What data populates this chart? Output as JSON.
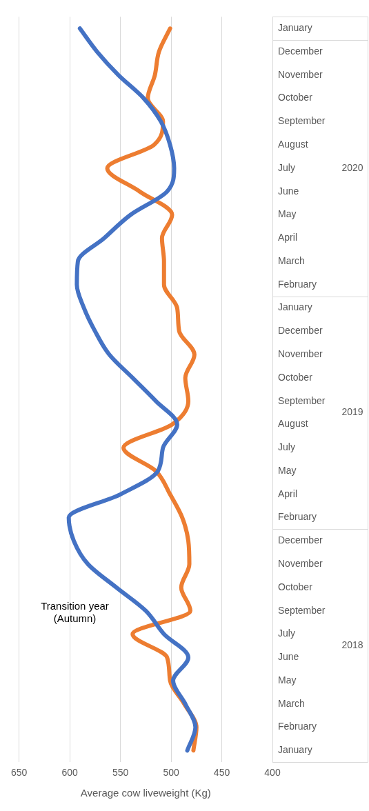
{
  "chart_data": {
    "type": "line",
    "orientation": "horizontal",
    "xlabel": "Average cow liveweight (Kg)",
    "categories": [
      "January",
      "December",
      "November",
      "October",
      "September",
      "August",
      "July",
      "June",
      "May",
      "April",
      "March",
      "February",
      "January",
      "December",
      "November",
      "October",
      "September",
      "August",
      "July",
      "May",
      "April",
      "February",
      "December",
      "November",
      "October",
      "September",
      "July",
      "June",
      "May",
      "March",
      "February",
      "January"
    ],
    "series": [
      {
        "color": "#4472c4",
        "values": [
          590,
          573,
          552,
          527,
          510,
          501,
          497,
          504,
          540,
          566,
          592,
          593,
          586,
          575,
          561,
          538,
          515,
          494,
          508,
          513,
          550,
          601,
          596,
          582,
          554,
          525,
          507,
          483,
          498,
          486,
          476,
          484
        ]
      },
      {
        "color": "#ed7d31",
        "values": [
          501,
          512,
          516,
          523,
          508,
          517,
          563,
          531,
          499,
          509,
          507,
          507,
          494,
          492,
          477,
          486,
          483,
          499,
          547,
          515,
          501,
          489,
          483,
          482,
          490,
          481,
          538,
          504,
          501,
          487,
          475,
          478
        ]
      }
    ],
    "xlim": [
      650,
      400
    ],
    "xticks": [
      650,
      600,
      550,
      500,
      450,
      400
    ],
    "grid": "x",
    "annotations": [
      "Transition year (Autumn)",
      "2020",
      "2019",
      "2018"
    ]
  }
}
